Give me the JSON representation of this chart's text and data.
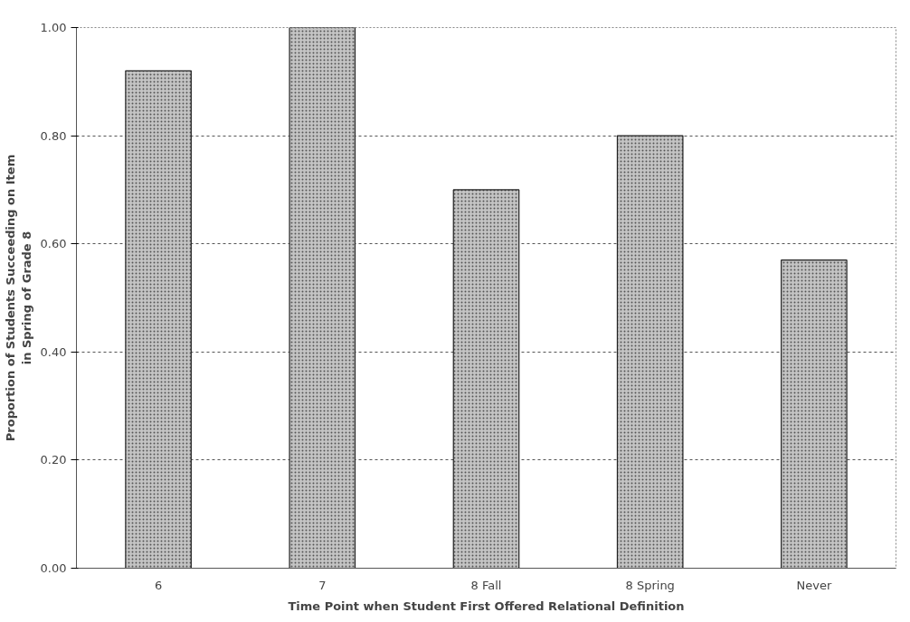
{
  "chart_data": {
    "type": "bar",
    "xlabel": "Time Point when Student First Offered Relational Definition",
    "ylabel": "Proportion of Students Succeeding on Item\nin Spring of Grade 8",
    "categories": [
      "6",
      "7",
      "8 Fall",
      "8 Spring",
      "Never"
    ],
    "values": [
      0.92,
      1.0,
      0.7,
      0.8,
      0.57
    ],
    "color": "#c4c4c4",
    "ylim": [
      0,
      1
    ],
    "yticks": [
      {
        "value": 0,
        "label": "0.00"
      },
      {
        "value": 0.2,
        "label": "0.20"
      },
      {
        "value": 0.4,
        "label": "0.40"
      },
      {
        "value": 0.6,
        "label": "0.60"
      },
      {
        "value": 0.8,
        "label": "0.80"
      },
      {
        "value": 1,
        "label": "1.00"
      }
    ],
    "grid": "y"
  }
}
